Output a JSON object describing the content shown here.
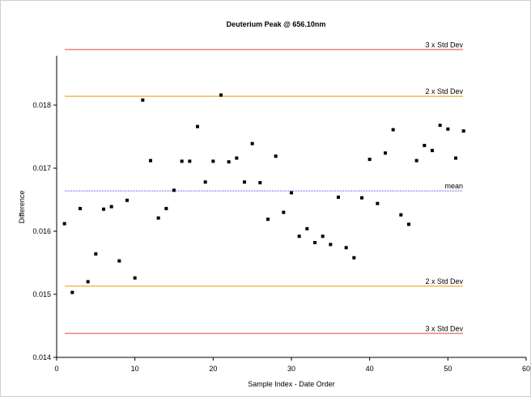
{
  "chart_data": {
    "type": "scatter",
    "title": "Deuterium Peak @ 656.10nm",
    "xlabel": "Sample Index - Date Order",
    "ylabel": "Difference",
    "xlim": [
      0,
      60
    ],
    "ylim": [
      0.014,
      0.019
    ],
    "xticks": [
      0,
      10,
      20,
      30,
      40,
      50,
      60
    ],
    "yticks": [
      0.014,
      0.015,
      0.016,
      0.017,
      0.018
    ],
    "yticks_labels": [
      "0.014",
      "0.015",
      "0.016",
      "0.017",
      "0.018"
    ],
    "grid": false,
    "point_color": "#000000",
    "points": [
      [
        1,
        0.01612
      ],
      [
        2,
        0.01503
      ],
      [
        3,
        0.01636
      ],
      [
        4,
        0.0152
      ],
      [
        5,
        0.01564
      ],
      [
        6,
        0.01635
      ],
      [
        7,
        0.01639
      ],
      [
        8,
        0.01553
      ],
      [
        9,
        0.01649
      ],
      [
        10,
        0.01526
      ],
      [
        11,
        0.01808
      ],
      [
        12,
        0.01712
      ],
      [
        13,
        0.01621
      ],
      [
        14,
        0.01636
      ],
      [
        15,
        0.01665
      ],
      [
        16,
        0.01711
      ],
      [
        17,
        0.01711
      ],
      [
        18,
        0.01766
      ],
      [
        19,
        0.01678
      ],
      [
        20,
        0.01711
      ],
      [
        21,
        0.01816
      ],
      [
        22,
        0.0171
      ],
      [
        23,
        0.01716
      ],
      [
        24,
        0.01678
      ],
      [
        25,
        0.01739
      ],
      [
        26,
        0.01677
      ],
      [
        27,
        0.01619
      ],
      [
        28,
        0.01719
      ],
      [
        29,
        0.0163
      ],
      [
        30,
        0.01661
      ],
      [
        31,
        0.01592
      ],
      [
        32,
        0.01604
      ],
      [
        33,
        0.01582
      ],
      [
        34,
        0.01592
      ],
      [
        35,
        0.01579
      ],
      [
        36,
        0.01654
      ],
      [
        37,
        0.01574
      ],
      [
        38,
        0.01558
      ],
      [
        39,
        0.01653
      ],
      [
        40,
        0.01714
      ],
      [
        41,
        0.01644
      ],
      [
        42,
        0.01724
      ],
      [
        43,
        0.01761
      ],
      [
        44,
        0.01626
      ],
      [
        45,
        0.01611
      ],
      [
        46,
        0.01712
      ],
      [
        47,
        0.01736
      ],
      [
        48,
        0.01728
      ],
      [
        49,
        0.01768
      ],
      [
        50,
        0.01762
      ],
      [
        51,
        0.01716
      ],
      [
        52,
        0.01759
      ]
    ],
    "reference_lines": [
      {
        "label": "3 x Std Dev",
        "value": 0.01888,
        "color": "#f08080"
      },
      {
        "label": "2 x Std Dev",
        "value": 0.01814,
        "color": "#f5b85a"
      },
      {
        "label": "mean",
        "value": 0.01664,
        "color": "#8080f0"
      },
      {
        "label": "2 x Std Dev",
        "value": 0.01513,
        "color": "#f5b85a"
      },
      {
        "label": "3 x Std Dev",
        "value": 0.01438,
        "color": "#f08080"
      }
    ]
  }
}
